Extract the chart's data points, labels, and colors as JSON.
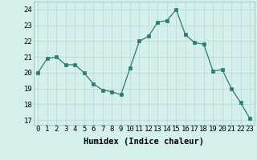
{
  "x": [
    0,
    1,
    2,
    3,
    4,
    5,
    6,
    7,
    8,
    9,
    10,
    11,
    12,
    13,
    14,
    15,
    16,
    17,
    18,
    19,
    20,
    21,
    22,
    23
  ],
  "y": [
    20.0,
    20.9,
    21.0,
    20.5,
    20.5,
    20.0,
    19.3,
    18.9,
    18.8,
    18.6,
    20.3,
    22.0,
    22.3,
    23.2,
    23.3,
    24.0,
    22.4,
    21.9,
    21.8,
    20.1,
    20.2,
    19.0,
    18.1,
    17.1
  ],
  "xlabel": "Humidex (Indice chaleur)",
  "ylim": [
    16.7,
    24.5
  ],
  "xlim": [
    -0.5,
    23.5
  ],
  "yticks": [
    17,
    18,
    19,
    20,
    21,
    22,
    23,
    24
  ],
  "xticks": [
    0,
    1,
    2,
    3,
    4,
    5,
    6,
    7,
    8,
    9,
    10,
    11,
    12,
    13,
    14,
    15,
    16,
    17,
    18,
    19,
    20,
    21,
    22,
    23
  ],
  "line_color": "#2a7d6d",
  "marker_color": "#2a7d6d",
  "bg_color": "#d4efec",
  "grid_color_major": "#b8d8d4",
  "grid_color_minor": "#cce8e4",
  "tick_fontsize": 6.5,
  "label_fontsize": 7.5
}
